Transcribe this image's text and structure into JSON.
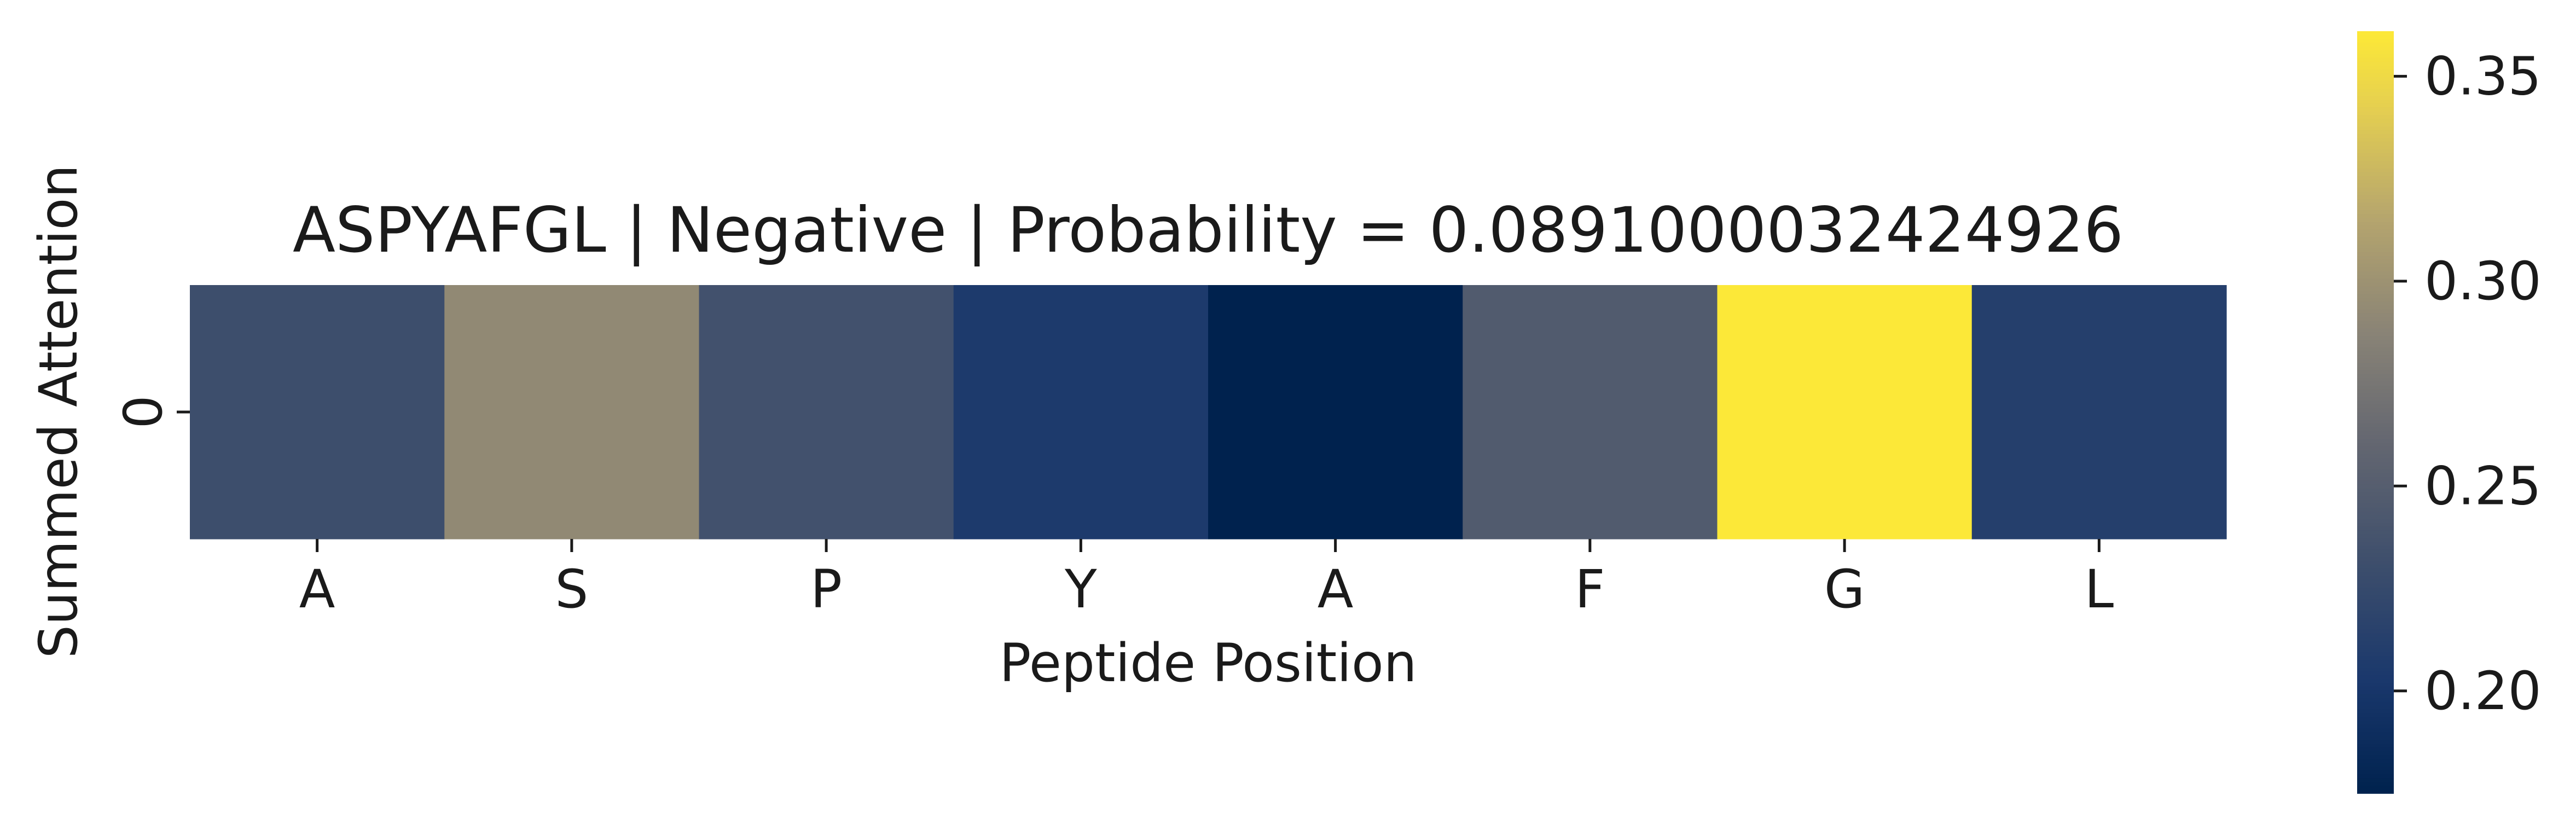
{
  "chart_data": {
    "type": "heatmap",
    "title": "ASPYAFGL | Negative | Probability = 0.0891000032424926",
    "xlabel": "Peptide Position",
    "ylabel": "Summed Attention",
    "x_tick_labels": [
      "A",
      "S",
      "P",
      "Y",
      "A",
      "F",
      "G",
      "L"
    ],
    "y_tick_labels": [
      "0"
    ],
    "values": [
      [
        0.231,
        0.292,
        0.235,
        0.205,
        0.175,
        0.246,
        0.36,
        0.212
      ]
    ],
    "colorbar": {
      "colormap": "cividis",
      "vmin": 0.175,
      "vmax": 0.361,
      "ticks": [
        0.2,
        0.25,
        0.3,
        0.35
      ],
      "tick_labels": [
        "0.20",
        "0.25",
        "0.30",
        "0.35"
      ]
    }
  }
}
